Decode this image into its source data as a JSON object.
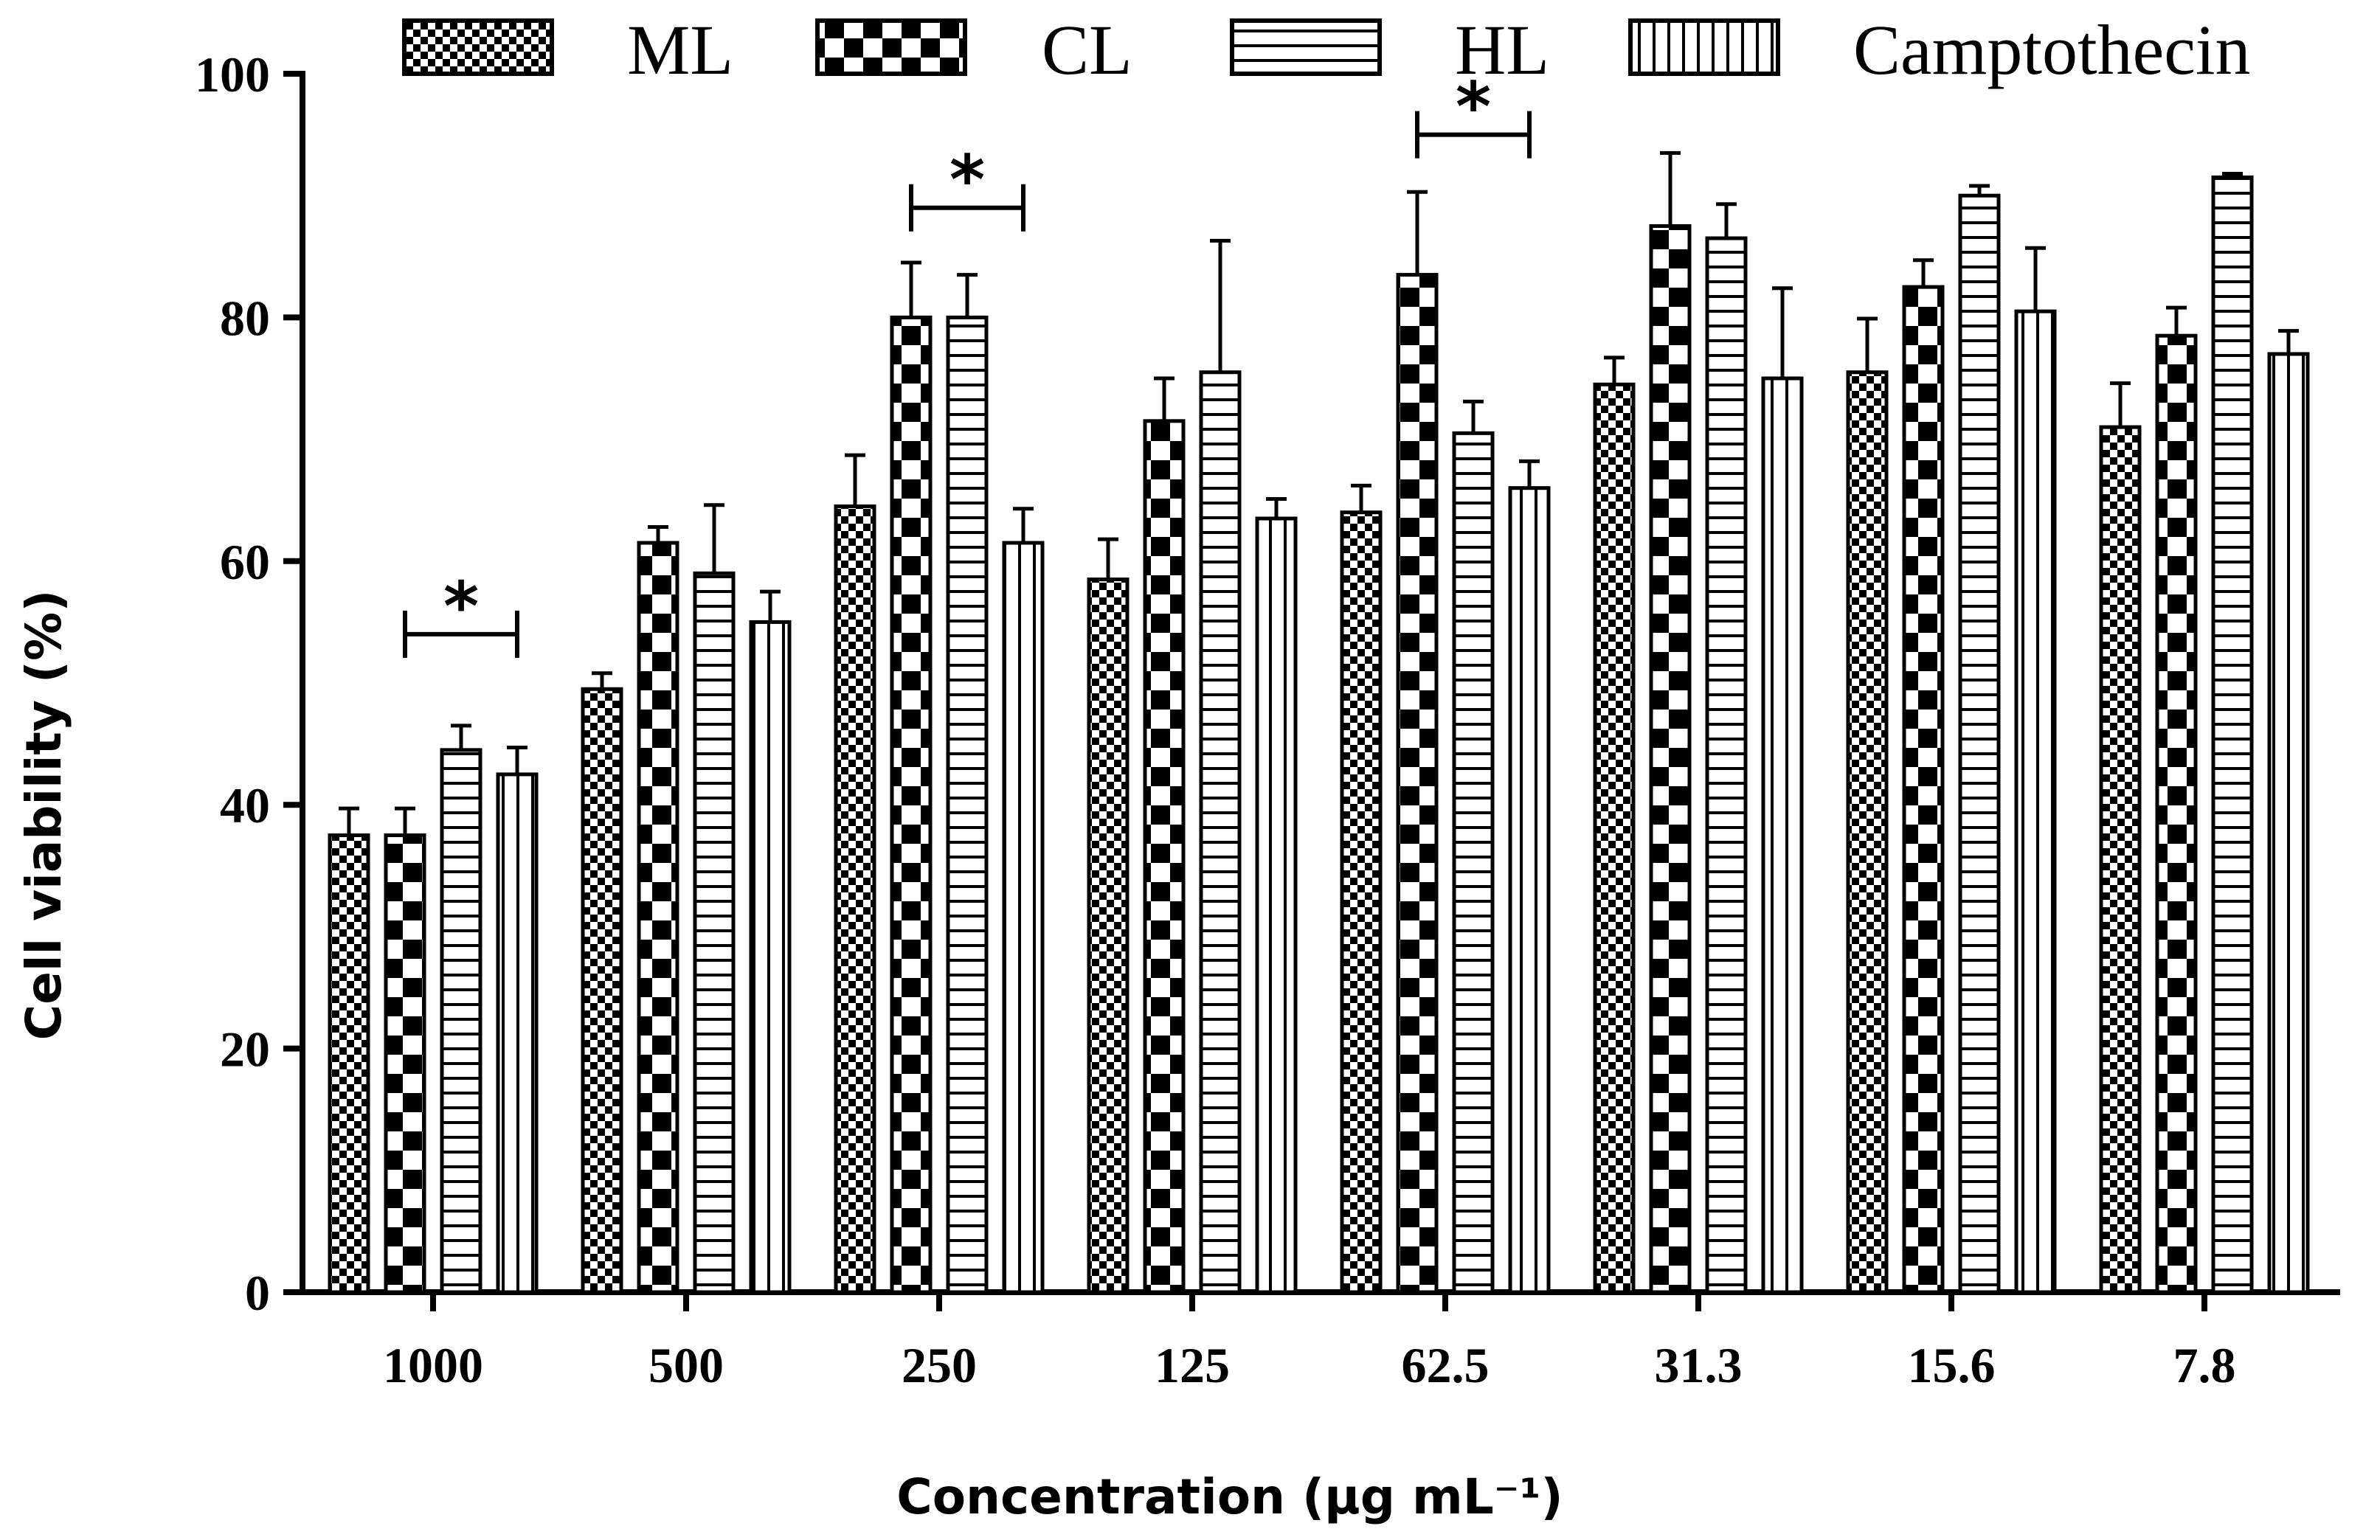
{
  "chart_data": {
    "type": "bar",
    "title": "",
    "xlabel": "Concentration (μg mL⁻¹)",
    "ylabel": "Cell viability (%)",
    "ylim": [
      0,
      100
    ],
    "yticks": [
      "0",
      "20",
      "40",
      "60",
      "80",
      "100"
    ],
    "categories": [
      "1000",
      "500",
      "250",
      "125",
      "62.5",
      "31.3",
      "15.6",
      "7.8"
    ],
    "legend_position": "top",
    "series": [
      {
        "name": "ML",
        "pattern": "checker-small",
        "values": [
          37.5,
          49.5,
          64.5,
          58.5,
          64,
          74.5,
          75.5,
          71
        ],
        "errors": [
          2.2,
          1.3,
          4.2,
          3.3,
          2.2,
          2.2,
          4.4,
          3.6
        ]
      },
      {
        "name": "CL",
        "pattern": "checker-large",
        "values": [
          37.5,
          61.5,
          80,
          71.5,
          83.5,
          87.5,
          82.5,
          78.5
        ],
        "errors": [
          2.2,
          1.3,
          4.5,
          3.5,
          6.8,
          6.0,
          2.2,
          2.3
        ]
      },
      {
        "name": "HL",
        "pattern": "horizontal-lines",
        "values": [
          44.5,
          59,
          80,
          75.5,
          70.5,
          86.5,
          90,
          91.5
        ],
        "errors": [
          2.0,
          5.6,
          3.5,
          10.8,
          2.6,
          2.8,
          0.8,
          0.3
        ]
      },
      {
        "name": "Camptothecin",
        "pattern": "vertical-lines",
        "values": [
          42.5,
          55,
          61.5,
          63.5,
          66,
          75,
          80.5,
          77
        ],
        "errors": [
          2.2,
          2.5,
          2.8,
          1.6,
          2.2,
          7.4,
          5.2,
          1.9
        ]
      }
    ],
    "significance": [
      {
        "label": "*",
        "category": "1000",
        "from_series": "CL",
        "to_series": "Camptothecin",
        "y": 54
      },
      {
        "label": "*",
        "category": "250",
        "from_series": "CL",
        "to_series": "Camptothecin",
        "y": 89
      },
      {
        "label": "*",
        "category": "62.5",
        "from_series": "CL",
        "to_series": "Camptothecin",
        "y": 95
      }
    ]
  }
}
